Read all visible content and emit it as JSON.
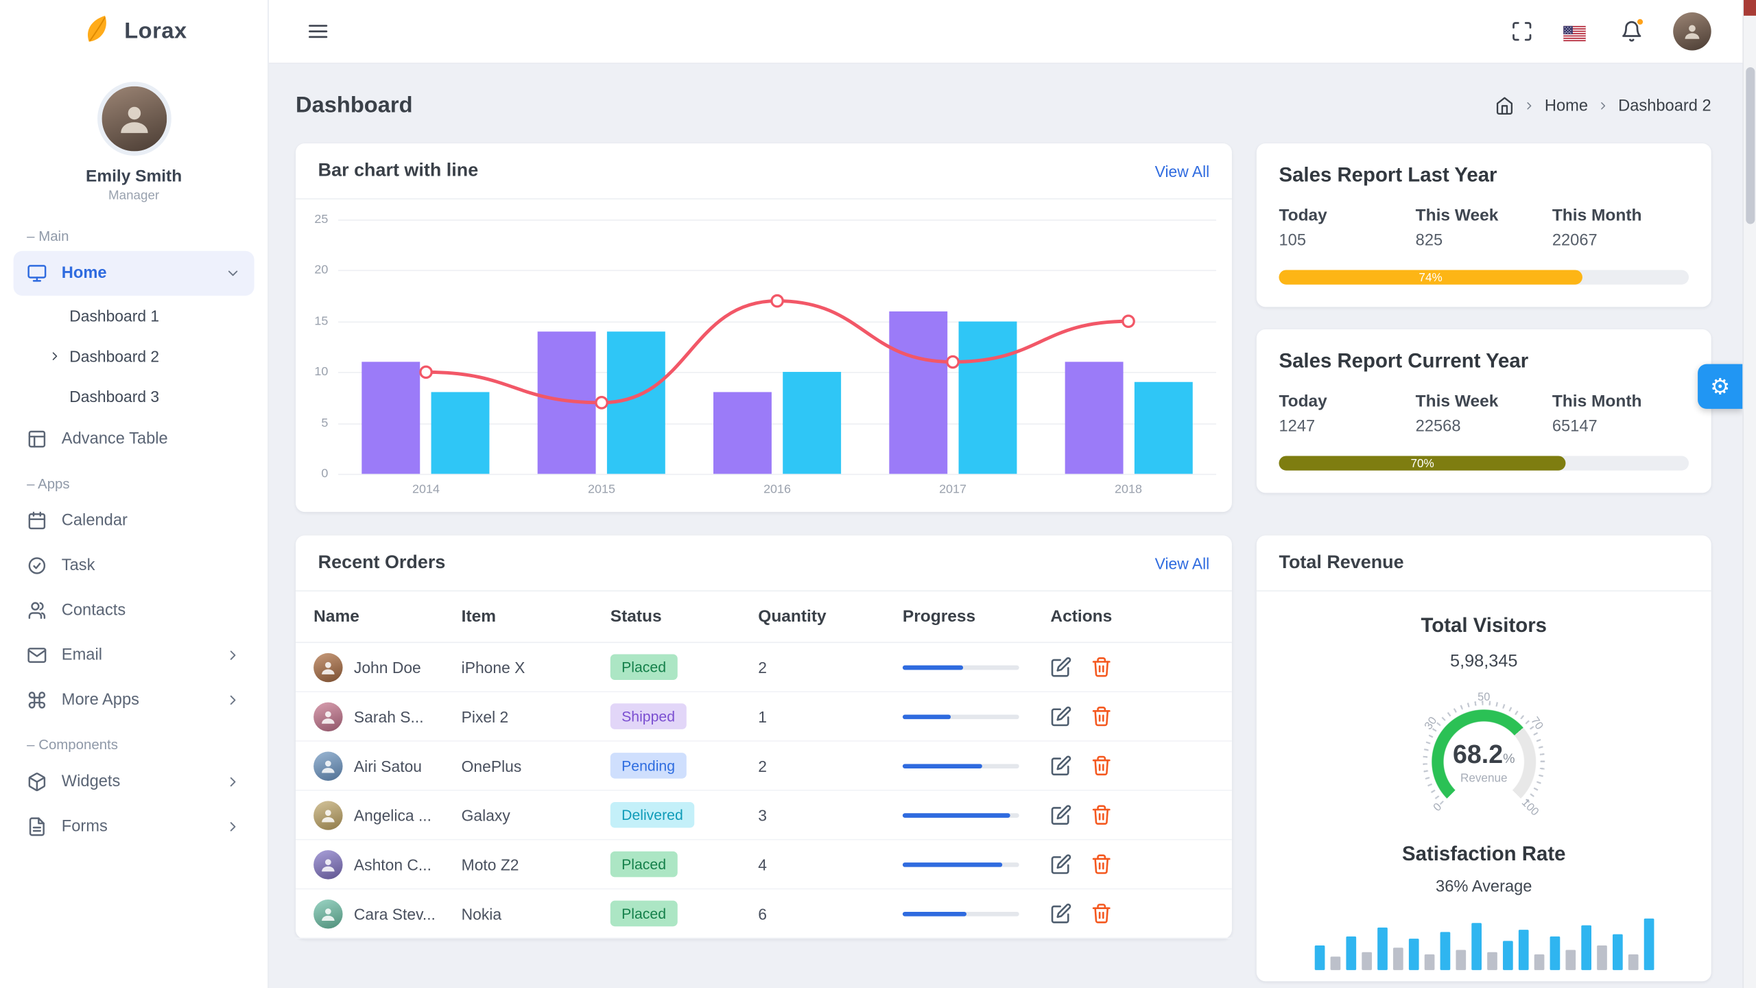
{
  "brand": {
    "name": "Lorax"
  },
  "user": {
    "name": "Emily Smith",
    "role": "Manager"
  },
  "sidebar": {
    "section_main": "– Main",
    "section_apps": "– Apps",
    "section_components": "– Components",
    "items": {
      "home": "Home",
      "dashboard1": "Dashboard 1",
      "dashboard2": "Dashboard 2",
      "dashboard3": "Dashboard 3",
      "advance_table": "Advance Table",
      "calendar": "Calendar",
      "task": "Task",
      "contacts": "Contacts",
      "email": "Email",
      "more_apps": "More Apps",
      "widgets": "Widgets",
      "forms": "Forms"
    }
  },
  "page": {
    "title": "Dashboard"
  },
  "breadcrumb": {
    "home": "Home",
    "current": "Dashboard 2"
  },
  "chart_card": {
    "title": "Bar chart with line",
    "view_all": "View All"
  },
  "orders": {
    "title": "Recent Orders",
    "view_all": "View All",
    "columns": [
      "Name",
      "Item",
      "Status",
      "Quantity",
      "Progress",
      "Actions"
    ],
    "rows": [
      {
        "name": "John Doe",
        "item": "iPhone X",
        "status": "Placed",
        "status_key": "placed",
        "qty": "2",
        "progress": 52
      },
      {
        "name": "Sarah S...",
        "item": "Pixel 2",
        "status": "Shipped",
        "status_key": "shipped",
        "qty": "1",
        "progress": 41
      },
      {
        "name": "Airi Satou",
        "item": "OnePlus",
        "status": "Pending",
        "status_key": "pending",
        "qty": "2",
        "progress": 68
      },
      {
        "name": "Angelica ...",
        "item": "Galaxy",
        "status": "Delivered",
        "status_key": "delivered",
        "qty": "3",
        "progress": 92
      },
      {
        "name": "Ashton C...",
        "item": "Moto Z2",
        "status": "Placed",
        "status_key": "placed",
        "qty": "4",
        "progress": 86
      },
      {
        "name": "Cara Stev...",
        "item": "Nokia",
        "status": "Placed",
        "status_key": "placed",
        "qty": "6",
        "progress": 55
      }
    ]
  },
  "sales_last_year": {
    "title": "Sales Report Last Year",
    "stats": [
      {
        "label": "Today",
        "value": "105"
      },
      {
        "label": "This Week",
        "value": "825"
      },
      {
        "label": "This Month",
        "value": "22067"
      }
    ],
    "progress": 74,
    "progress_label": "74%",
    "color": "#fdb515"
  },
  "sales_current_year": {
    "title": "Sales Report Current Year",
    "stats": [
      {
        "label": "Today",
        "value": "1247"
      },
      {
        "label": "This Week",
        "value": "22568"
      },
      {
        "label": "This Month",
        "value": "65147"
      }
    ],
    "progress": 70,
    "progress_label": "70%",
    "color": "#7e7d10"
  },
  "revenue": {
    "title": "Total Revenue",
    "visitors_title": "Total Visitors",
    "visitors_value": "5,98,345",
    "gauge_value": "68.2",
    "gauge_unit": "%",
    "gauge_label": "Revenue",
    "satisfaction_title": "Satisfaction Rate",
    "satisfaction_value": "36% Average"
  },
  "colors": {
    "accent_blue": "#2f6bdf",
    "bar_purple": "#9b7bf8",
    "bar_cyan": "#2fc6f6",
    "line_red": "#f25767",
    "progress_orange": "#fdb515",
    "progress_olive": "#7e7d10",
    "gauge_green": "#2bc155",
    "fab_blue": "#2196f3",
    "badge_placed_bg": "#ace6c4",
    "badge_shipped_bg": "#e2d6f8",
    "badge_pending_bg": "#cfdffd",
    "badge_delivered_bg": "#c4f0f9",
    "trash_orange": "#f4581f"
  },
  "icons": {
    "leaf-logo-icon": "orange leaf svg",
    "hamburger-icon": "three lines",
    "fullscreen-icon": "corner brackets",
    "us-flag-icon": "US flag",
    "bell-icon": "bell with orange dot",
    "monitor-icon": "monitor",
    "table-icon": "grid",
    "calendar-icon": "calendar",
    "check-circle-icon": "circle with check",
    "users-icon": "two people",
    "mail-icon": "envelope",
    "command-icon": "command key",
    "package-icon": "box",
    "file-text-icon": "document",
    "chevron-down-icon": "v",
    "chevron-right-icon": ">",
    "home-icon": "house",
    "edit-icon": "pencil in square",
    "trash-icon": "trash can",
    "gear-icon": "⚙"
  },
  "chart_data": [
    {
      "id": "bar-with-line",
      "type": "bar",
      "title": "Bar chart with line",
      "categories": [
        "2014",
        "2015",
        "2016",
        "2017",
        "2018"
      ],
      "series": [
        {
          "name": "series-purple",
          "type": "bar",
          "color": "#9b7bf8",
          "values": [
            11,
            14,
            8,
            16,
            11
          ]
        },
        {
          "name": "series-cyan",
          "type": "bar",
          "color": "#2fc6f6",
          "values": [
            8,
            14,
            10,
            15,
            9
          ]
        },
        {
          "name": "trend-line",
          "type": "line",
          "color": "#f25767",
          "values": [
            10,
            7,
            17,
            11,
            15
          ]
        }
      ],
      "ylim": [
        0,
        25
      ],
      "yticks": [
        0,
        5,
        10,
        15,
        20,
        25
      ],
      "grid": true,
      "legend": "none"
    },
    {
      "id": "revenue-gauge",
      "type": "radial",
      "value": 68.2,
      "unit": "%",
      "label": "Revenue",
      "ticks": [
        0,
        30,
        50,
        70,
        100
      ],
      "range": [
        0,
        100
      ],
      "color": "#2bc155",
      "track": "#e8e8e8"
    },
    {
      "id": "satisfaction-bars",
      "type": "bar",
      "colors": {
        "blue": "#2fb5f0",
        "gray": "#bcc0ca"
      },
      "bars": [
        {
          "v": 22,
          "c": "blue"
        },
        {
          "v": 12,
          "c": "gray"
        },
        {
          "v": 30,
          "c": "blue"
        },
        {
          "v": 16,
          "c": "gray"
        },
        {
          "v": 38,
          "c": "blue"
        },
        {
          "v": 20,
          "c": "gray"
        },
        {
          "v": 28,
          "c": "blue"
        },
        {
          "v": 14,
          "c": "gray"
        },
        {
          "v": 34,
          "c": "blue"
        },
        {
          "v": 18,
          "c": "gray"
        },
        {
          "v": 42,
          "c": "blue"
        },
        {
          "v": 16,
          "c": "gray"
        },
        {
          "v": 26,
          "c": "blue"
        },
        {
          "v": 36,
          "c": "blue"
        },
        {
          "v": 14,
          "c": "gray"
        },
        {
          "v": 30,
          "c": "blue"
        },
        {
          "v": 18,
          "c": "gray"
        },
        {
          "v": 40,
          "c": "blue"
        },
        {
          "v": 22,
          "c": "gray"
        },
        {
          "v": 32,
          "c": "blue"
        },
        {
          "v": 14,
          "c": "gray"
        },
        {
          "v": 46,
          "c": "blue"
        }
      ]
    }
  ]
}
